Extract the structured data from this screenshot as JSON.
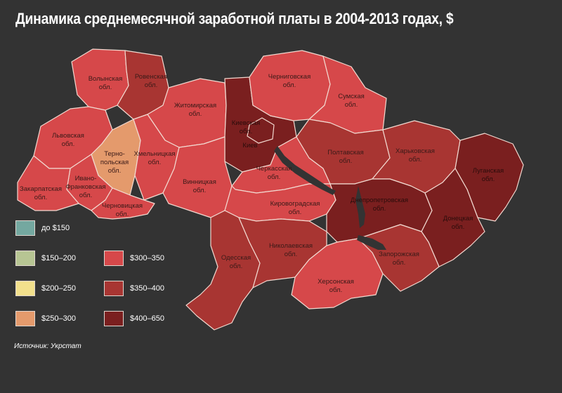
{
  "title": "Динамика среднемесячной заработной платы в 2004-2013 годах, $",
  "source": "Источник: Укрстат",
  "colors": {
    "c1": "#74a8a0",
    "c2": "#b7c593",
    "c3": "#f2e08c",
    "c4": "#e49a6c",
    "c5": "#d6484a",
    "c6": "#a83532",
    "c7": "#7a1f1f"
  },
  "legend": [
    {
      "label": "до $150",
      "color": "#74a8a0"
    },
    {
      "label": "$150–200",
      "color": "#b7c593"
    },
    {
      "label": "$200–250",
      "color": "#f2e08c"
    },
    {
      "label": "$250–300",
      "color": "#e49a6c"
    },
    {
      "label": "$300–350",
      "color": "#d6484a"
    },
    {
      "label": "$350–400",
      "color": "#a83532"
    },
    {
      "label": "$400–650",
      "color": "#7a1f1f"
    }
  ],
  "regions": {
    "volyn": {
      "l1": "Волынская",
      "l2": "обл.",
      "category": "$300–350"
    },
    "rivne": {
      "l1": "Ровенская",
      "l2": "обл.",
      "category": "$350–400"
    },
    "zhytomyr": {
      "l1": "Житомирская",
      "l2": "обл.",
      "category": "$300–350"
    },
    "chernihiv": {
      "l1": "Черниговская",
      "l2": "обл.",
      "category": "$300–350"
    },
    "sumy": {
      "l1": "Сумская",
      "l2": "обл.",
      "category": "$300–350"
    },
    "lviv": {
      "l1": "Львовская",
      "l2": "обл.",
      "category": "$300–350"
    },
    "ternopil": {
      "l1": "Терно-",
      "l2": "польская",
      "l3": "обл.",
      "category": "$250–300"
    },
    "khmelnytskyi": {
      "l1": "Хмельницкая",
      "l2": "обл.",
      "category": "$300–350"
    },
    "kyiv_obl": {
      "l1": "Киевская",
      "l2": "обл.",
      "category": "$400–650"
    },
    "kyiv": {
      "l1": "Киев",
      "category": "$400–650"
    },
    "poltava": {
      "l1": "Полтавская",
      "l2": "обл.",
      "category": "$350–400"
    },
    "kharkiv": {
      "l1": "Харьковская",
      "l2": "обл.",
      "category": "$350–400"
    },
    "luhansk": {
      "l1": "Луганская",
      "l2": "обл.",
      "category": "$400–650"
    },
    "ivano": {
      "l1": "Ивано-",
      "l2": "Франковская",
      "l3": "обл.",
      "category": "$300–350"
    },
    "zakarpattia": {
      "l1": "Закарпатская",
      "l2": "обл.",
      "category": "$300–350"
    },
    "chernivtsi": {
      "l1": "Черновицкая",
      "l2": "обл.",
      "category": "$300–350"
    },
    "vinnytsia": {
      "l1": "Винницкая",
      "l2": "обл.",
      "category": "$300–350"
    },
    "cherkasy": {
      "l1": "Черкасская",
      "l2": "обл.",
      "category": "$300–350"
    },
    "kirovohrad": {
      "l1": "Кировоградская",
      "l2": "обл.",
      "category": "$300–350"
    },
    "dnipro": {
      "l1": "Днепропетровская",
      "l2": "обл.",
      "category": "$400–650"
    },
    "donetsk": {
      "l1": "Донецкая",
      "l2": "обл.",
      "category": "$400–650"
    },
    "odesa": {
      "l1": "Одесская",
      "l2": "обл.",
      "category": "$350–400"
    },
    "mykolaiv": {
      "l1": "Николаевская",
      "l2": "обл.",
      "category": "$350–400"
    },
    "zaporizhzhia": {
      "l1": "Запорожская",
      "l2": "обл.",
      "category": "$350–400"
    },
    "kherson": {
      "l1": "Херсонская",
      "l2": "обл.",
      "category": "$300–350"
    }
  }
}
